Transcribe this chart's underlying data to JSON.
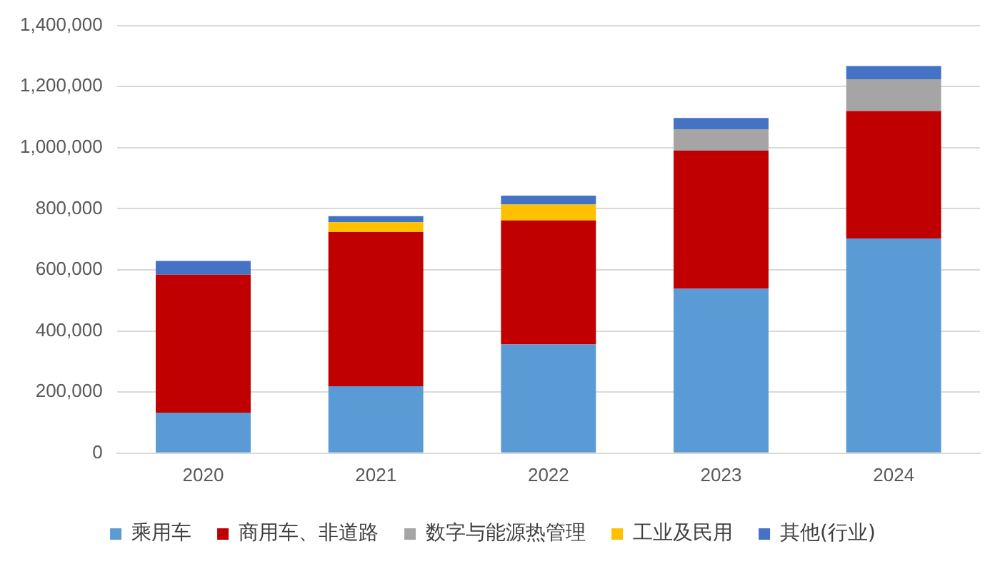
{
  "chart_data": {
    "type": "bar",
    "stacked": true,
    "categories": [
      "2020",
      "2021",
      "2022",
      "2023",
      "2024"
    ],
    "series": [
      {
        "name": "乘用车",
        "color": "#5b9bd5",
        "values": [
          133000,
          219000,
          356000,
          538000,
          703000
        ]
      },
      {
        "name": "商用车、非道路",
        "color": "#c00000",
        "values": [
          451000,
          505000,
          406000,
          452000,
          417000
        ]
      },
      {
        "name": "数字与能源热管理",
        "color": "#a5a5a5",
        "values": [
          0,
          0,
          0,
          70000,
          104000
        ]
      },
      {
        "name": "工业及民用",
        "color": "#ffc000",
        "values": [
          0,
          32000,
          52000,
          0,
          0
        ]
      },
      {
        "name": "其他(行业)",
        "color": "#4472c4",
        "values": [
          45000,
          20000,
          29000,
          37000,
          43000
        ]
      }
    ],
    "ylim": [
      0,
      1400000
    ],
    "yticks": [
      0,
      {
        "value": 200000,
        "label": "200,000"
      },
      {
        "value": 400000,
        "label": "400,000"
      },
      {
        "value": 600000,
        "label": "600,000"
      },
      {
        "value": 800000,
        "label": "800,000"
      },
      {
        "value": 1000000,
        "label": "1,000,000"
      },
      {
        "value": 1200000,
        "label": "1,200,000"
      },
      {
        "value": 1400000,
        "label": "1,400,000"
      }
    ],
    "grid": "y",
    "legend": "bottom"
  }
}
